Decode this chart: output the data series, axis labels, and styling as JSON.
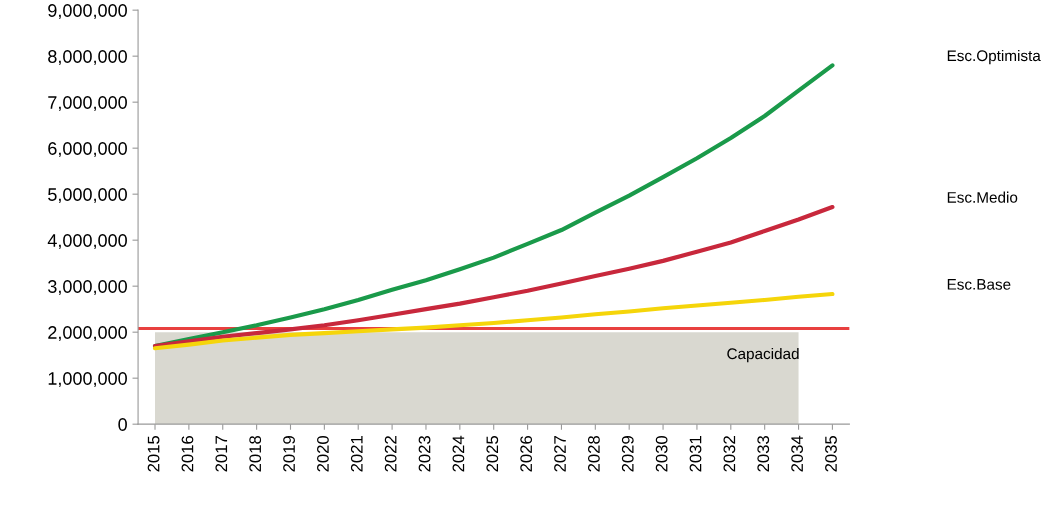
{
  "chart_data": {
    "type": "line",
    "x": [
      2015,
      2016,
      2017,
      2018,
      2019,
      2020,
      2021,
      2022,
      2023,
      2024,
      2025,
      2026,
      2027,
      2028,
      2029,
      2030,
      2031,
      2032,
      2033,
      2034,
      2035
    ],
    "series": [
      {
        "type": "area",
        "color": "#d9d8d0",
        "values": [
          2000000,
          2000000,
          2000000,
          2000000,
          2000000,
          2000000,
          2000000,
          2000000,
          2000000,
          2000000,
          2000000,
          2000000,
          2000000,
          2000000,
          2000000,
          2000000,
          2000000,
          2000000,
          2000000,
          2000000,
          null
        ]
      },
      {
        "name": "Esc.Optimista",
        "color": "#1a9a4a",
        "values": [
          1700000,
          1850000,
          2000000,
          2150000,
          2320000,
          2500000,
          2700000,
          2920000,
          3130000,
          3370000,
          3620000,
          3920000,
          4220000,
          4600000,
          4970000,
          5370000,
          5780000,
          6220000,
          6700000,
          7250000,
          7800000
        ]
      },
      {
        "name": "Esc.Medio",
        "color": "#c8283c",
        "values": [
          1700000,
          1800000,
          1900000,
          1980000,
          2060000,
          2150000,
          2260000,
          2380000,
          2500000,
          2620000,
          2760000,
          2900000,
          3060000,
          3220000,
          3380000,
          3550000,
          3750000,
          3950000,
          4200000,
          4450000,
          4720000
        ]
      },
      {
        "name": "Esc.Base",
        "color": "#f5d50a",
        "values": [
          1650000,
          1730000,
          1820000,
          1880000,
          1940000,
          1980000,
          2020000,
          2060000,
          2100000,
          2150000,
          2200000,
          2260000,
          2320000,
          2390000,
          2450000,
          2520000,
          2580000,
          2640000,
          2700000,
          2770000,
          2830000
        ]
      }
    ],
    "ref_lines": [
      {
        "axis": "y",
        "value": 2080000,
        "label": "Capacidad",
        "color": "#e8403f"
      }
    ],
    "xlim": [
      2014.5,
      2035.5
    ],
    "xticks": [
      2015,
      2016,
      2017,
      2018,
      2019,
      2020,
      2021,
      2022,
      2023,
      2024,
      2025,
      2026,
      2027,
      2028,
      2029,
      2030,
      2031,
      2032,
      2033,
      2034,
      2035
    ],
    "ylim": [
      0,
      9000000
    ],
    "yticks": [
      {
        "value": 0,
        "label": "0"
      },
      {
        "value": 1000000,
        "label": "1,000,000"
      },
      {
        "value": 2000000,
        "label": "2,000,000"
      },
      {
        "value": 3000000,
        "label": "3,000,000"
      },
      {
        "value": 4000000,
        "label": "4,000,000"
      },
      {
        "value": 5000000,
        "label": "5,000,000"
      },
      {
        "value": 6000000,
        "label": "6,000,000"
      },
      {
        "value": 7000000,
        "label": "7,000,000"
      },
      {
        "value": 8000000,
        "label": "8,000,000"
      },
      {
        "value": 9000000,
        "label": "9,000,000"
      }
    ],
    "grid": false,
    "legend": false
  }
}
